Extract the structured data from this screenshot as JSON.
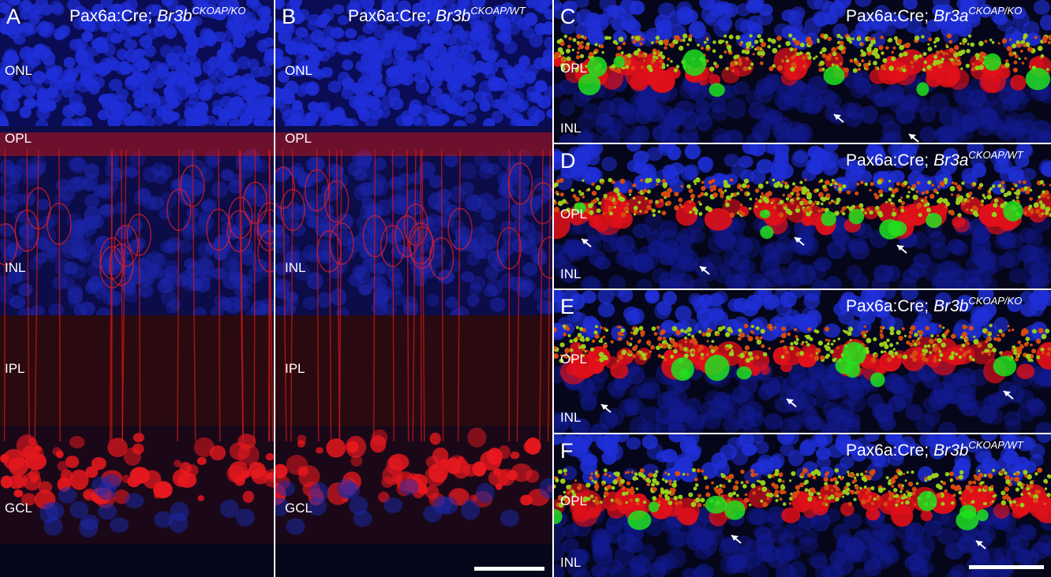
{
  "panels": [
    {
      "letter": "A",
      "title": {
        "prefix": "Pax6a:Cre;",
        "gene": "Br3b",
        "allele": "CKOAP/KO"
      },
      "layers": [
        "ONL",
        "OPL",
        "INL",
        "IPL",
        "GCL"
      ]
    },
    {
      "letter": "B",
      "title": {
        "prefix": "Pax6a:Cre;",
        "gene": "Br3b",
        "allele": "CKOAP/WT"
      },
      "layers": [
        "ONL",
        "OPL",
        "INL",
        "IPL",
        "GCL"
      ]
    },
    {
      "letter": "C",
      "title": {
        "prefix": "Pax6a:Cre;",
        "gene": "Br3a",
        "allele": "CKOAP/KO"
      },
      "layers": [
        "OPL",
        "INL"
      ]
    },
    {
      "letter": "D",
      "title": {
        "prefix": "Pax6a:Cre;",
        "gene": "Br3a",
        "allele": "CKOAP/WT"
      },
      "layers": [
        "OPL",
        "INL"
      ]
    },
    {
      "letter": "E",
      "title": {
        "prefix": "Pax6a:Cre;",
        "gene": "Br3b",
        "allele": "CKOAP/KO"
      },
      "layers": [
        "OPL",
        "INL"
      ]
    },
    {
      "letter": "F",
      "title": {
        "prefix": "Pax6a:Cre;",
        "gene": "Br3b",
        "allele": "CKOAP/WT"
      },
      "layers": [
        "OPL",
        "INL"
      ]
    }
  ]
}
